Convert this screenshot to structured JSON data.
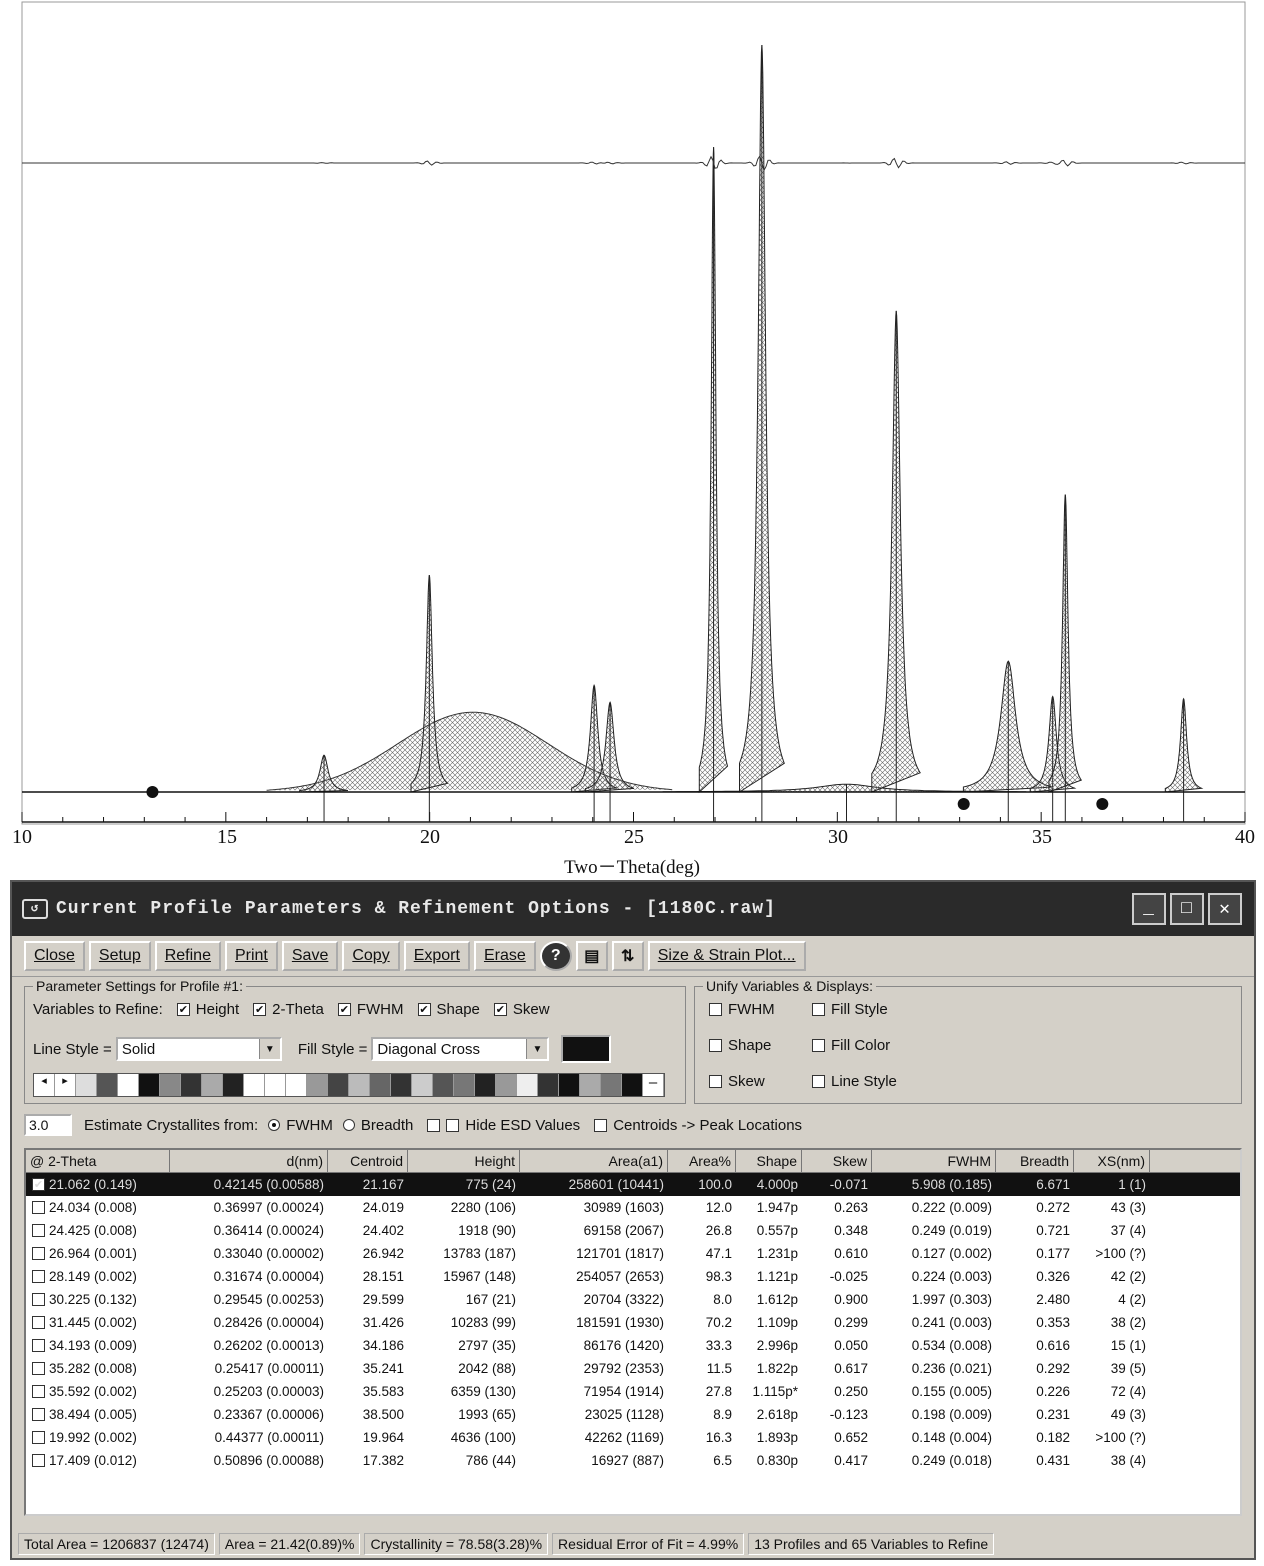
{
  "plot": {
    "x_title": "Two－Theta(deg)",
    "x_ticks": [
      "10",
      "15",
      "20",
      "25",
      "30",
      "35",
      "40"
    ]
  },
  "chart_data": {
    "type": "line",
    "xlabel": "Two－Theta(deg)",
    "ylabel": "",
    "xlim": [
      10,
      40
    ],
    "peaks_2theta": [
      17.409,
      19.992,
      21.062,
      24.034,
      24.425,
      26.964,
      28.149,
      30.225,
      31.445,
      34.193,
      35.282,
      35.592,
      38.494
    ],
    "peak_heights": [
      786,
      4636,
      775,
      2280,
      1918,
      13783,
      15967,
      167,
      10283,
      2797,
      2042,
      6359,
      1993
    ]
  },
  "window": {
    "title": "Current Profile Parameters & Refinement Options - [1180C.raw]",
    "buttons": {
      "minimize": "_",
      "maximize": "□",
      "close": "✕"
    }
  },
  "toolbar": {
    "close": "Close",
    "setup": "Setup",
    "refine": "Refine",
    "print": "Print",
    "save": "Save",
    "copy": "Copy",
    "export": "Export",
    "erase": "Erase",
    "help": "?",
    "size_strain": "Size & Strain Plot..."
  },
  "params": {
    "group_label": "Parameter Settings for Profile #1:",
    "variables_label": "Variables to Refine:",
    "vars": [
      "Height",
      "2-Theta",
      "FWHM",
      "Shape",
      "Skew"
    ],
    "line_style_label": "Line Style =",
    "line_style_value": "Solid",
    "fill_style_label": "Fill Style =",
    "fill_style_value": "Diagonal Cross"
  },
  "unify": {
    "group_label": "Unify Variables & Displays:",
    "items": [
      "FWHM",
      "Fill Style",
      "Shape",
      "Fill Color",
      "Skew",
      "Line Style"
    ]
  },
  "estimate": {
    "value": "3.0",
    "label": "Estimate Crystallites from:",
    "opt1": "FWHM",
    "opt2": "Breadth",
    "hide_esd": "Hide ESD Values",
    "centroids": "Centroids -> Peak Locations"
  },
  "table": {
    "headers": [
      "@ 2-Theta",
      "d(nm)",
      "Centroid",
      "Height",
      "Area(a1)",
      "Area%",
      "Shape",
      "Skew",
      "FWHM",
      "Breadth",
      "XS(nm)"
    ],
    "rows": [
      [
        "21.062 (0.149)",
        "0.42145 (0.00588)",
        "21.167",
        "775 (24)",
        "258601 (10441)",
        "100.0",
        "4.000p",
        "-0.071",
        "5.908 (0.185)",
        "6.671",
        "1 (1)"
      ],
      [
        "24.034 (0.008)",
        "0.36997 (0.00024)",
        "24.019",
        "2280 (106)",
        "30989 (1603)",
        "12.0",
        "1.947p",
        "0.263",
        "0.222 (0.009)",
        "0.272",
        "43 (3)"
      ],
      [
        "24.425 (0.008)",
        "0.36414 (0.00024)",
        "24.402",
        "1918 (90)",
        "69158 (2067)",
        "26.8",
        "0.557p",
        "0.348",
        "0.249 (0.019)",
        "0.721",
        "37 (4)"
      ],
      [
        "26.964 (0.001)",
        "0.33040 (0.00002)",
        "26.942",
        "13783 (187)",
        "121701 (1817)",
        "47.1",
        "1.231p",
        "0.610",
        "0.127 (0.002)",
        "0.177",
        ">100 (?)"
      ],
      [
        "28.149 (0.002)",
        "0.31674 (0.00004)",
        "28.151",
        "15967 (148)",
        "254057 (2653)",
        "98.3",
        "1.121p",
        "-0.025",
        "0.224 (0.003)",
        "0.326",
        "42 (2)"
      ],
      [
        "30.225 (0.132)",
        "0.29545 (0.00253)",
        "29.599",
        "167 (21)",
        "20704 (3322)",
        "8.0",
        "1.612p",
        "0.900",
        "1.997 (0.303)",
        "2.480",
        "4 (2)"
      ],
      [
        "31.445 (0.002)",
        "0.28426 (0.00004)",
        "31.426",
        "10283 (99)",
        "181591 (1930)",
        "70.2",
        "1.109p",
        "0.299",
        "0.241 (0.003)",
        "0.353",
        "38 (2)"
      ],
      [
        "34.193 (0.009)",
        "0.26202 (0.00013)",
        "34.186",
        "2797 (35)",
        "86176 (1420)",
        "33.3",
        "2.996p",
        "0.050",
        "0.534 (0.008)",
        "0.616",
        "15 (1)"
      ],
      [
        "35.282 (0.008)",
        "0.25417 (0.00011)",
        "35.241",
        "2042 (88)",
        "29792 (2353)",
        "11.5",
        "1.822p",
        "0.617",
        "0.236 (0.021)",
        "0.292",
        "39 (5)"
      ],
      [
        "35.592 (0.002)",
        "0.25203 (0.00003)",
        "35.583",
        "6359 (130)",
        "71954 (1914)",
        "27.8",
        "1.115p*",
        "0.250",
        "0.155 (0.005)",
        "0.226",
        "72 (4)"
      ],
      [
        "38.494 (0.005)",
        "0.23367 (0.00006)",
        "38.500",
        "1993 (65)",
        "23025 (1128)",
        "8.9",
        "2.618p",
        "-0.123",
        "0.198 (0.009)",
        "0.231",
        "49 (3)"
      ],
      [
        "19.992 (0.002)",
        "0.44377 (0.00011)",
        "19.964",
        "4636 (100)",
        "42262 (1169)",
        "16.3",
        "1.893p",
        "0.652",
        "0.148 (0.004)",
        "0.182",
        ">100 (?)"
      ],
      [
        "17.409 (0.012)",
        "0.50896 (0.00088)",
        "17.382",
        "786 (44)",
        "16927 (887)",
        "6.5",
        "0.830p",
        "0.417",
        "0.249 (0.018)",
        "0.431",
        "38 (4)"
      ]
    ]
  },
  "status": {
    "total_area": "Total Area = 1206837 (12474)",
    "area": "Area = 21.42(0.89)%",
    "crystallinity": "Crystallinity = 78.58(3.28)%",
    "residual": "Residual Error of Fit = 4.99%",
    "profiles": "13 Profiles and 65 Variables to Refine"
  }
}
